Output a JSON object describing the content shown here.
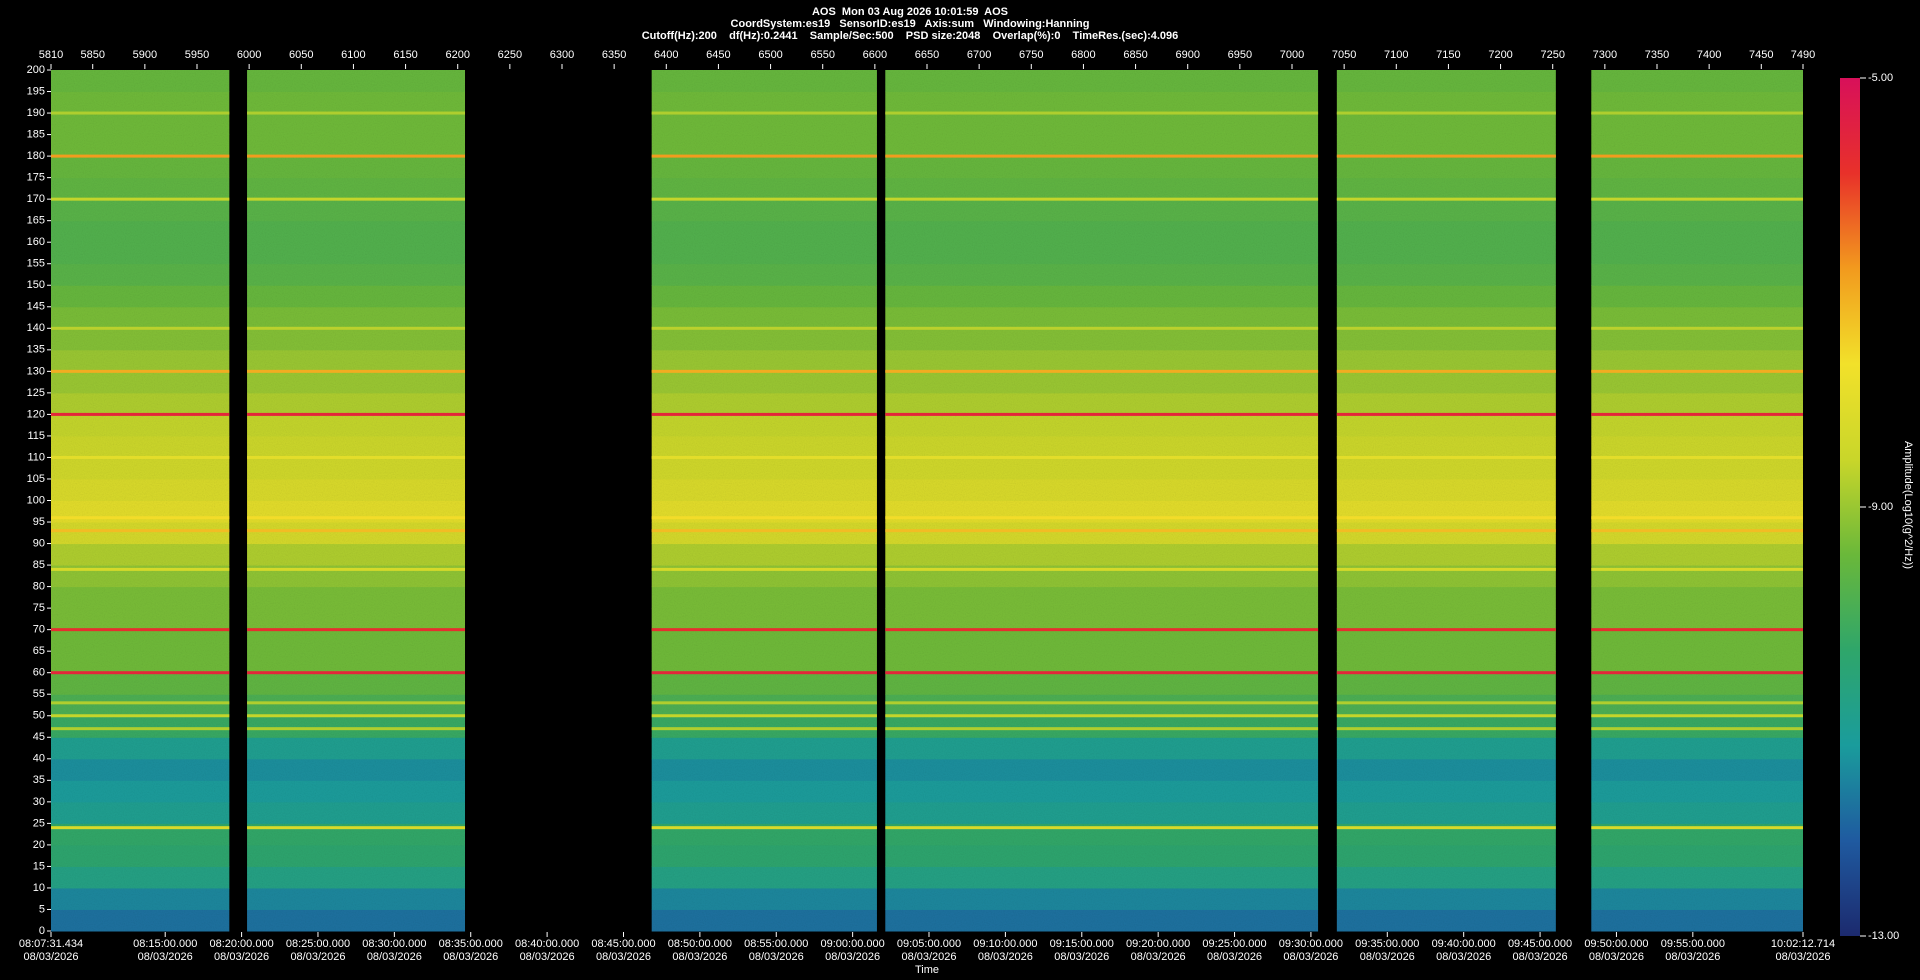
{
  "chart_data": {
    "type": "spectrogram",
    "title": "AOS  Mon 03 Aug 2026 10:01:59  AOS",
    "subtitle": "CoordSystem:es19   SensorID:es19   Axis:sum   Windowing:Hanning",
    "info": "Cutoff(Hz):200    df(Hz):0.2441    Sample/Sec:500    PSD size:2048    Overlap(%):0    TimeRes.(sec):4.096",
    "x_label": "Time",
    "colorbar_label": "Amplitude(Log10(g^2/Hz))",
    "xlim": [
      5810,
      7490
    ],
    "xticks": [
      5810,
      5850,
      5900,
      5950,
      6000,
      6050,
      6100,
      6150,
      6200,
      6250,
      6300,
      6350,
      6400,
      6450,
      6500,
      6550,
      6600,
      6650,
      6700,
      6750,
      6800,
      6850,
      6900,
      6950,
      7000,
      7050,
      7100,
      7150,
      7200,
      7250,
      7300,
      7350,
      7400,
      7450,
      7490
    ],
    "time_date": "08/03/2026",
    "time_ticks": [
      {
        "value": 5810,
        "label": "08:07:31.434"
      },
      {
        "value": 5919.51,
        "label": "08:15:00.000"
      },
      {
        "value": 5992.76,
        "label": "08:20:00.000"
      },
      {
        "value": 6066.0,
        "label": "08:25:00.000"
      },
      {
        "value": 6139.24,
        "label": "08:30:00.000"
      },
      {
        "value": 6212.48,
        "label": "08:35:00.000"
      },
      {
        "value": 6285.72,
        "label": "08:40:00.000"
      },
      {
        "value": 6358.96,
        "label": "08:45:00.000"
      },
      {
        "value": 6432.21,
        "label": "08:50:00.000"
      },
      {
        "value": 6505.45,
        "label": "08:55:00.000"
      },
      {
        "value": 6578.69,
        "label": "09:00:00.000"
      },
      {
        "value": 6651.93,
        "label": "09:05:00.000"
      },
      {
        "value": 6725.17,
        "label": "09:10:00.000"
      },
      {
        "value": 6798.42,
        "label": "09:15:00.000"
      },
      {
        "value": 6871.66,
        "label": "09:20:00.000"
      },
      {
        "value": 6944.9,
        "label": "09:25:00.000"
      },
      {
        "value": 7018.14,
        "label": "09:30:00.000"
      },
      {
        "value": 7091.38,
        "label": "09:35:00.000"
      },
      {
        "value": 7164.63,
        "label": "09:40:00.000"
      },
      {
        "value": 7237.87,
        "label": "09:45:00.000"
      },
      {
        "value": 7311.11,
        "label": "09:50:00.000"
      },
      {
        "value": 7384.35,
        "label": "09:55:00.000"
      },
      {
        "value": 7490,
        "label": "10:02:12.714"
      }
    ],
    "ylim": [
      0,
      200
    ],
    "yticks": [
      0,
      5,
      10,
      15,
      20,
      25,
      30,
      35,
      40,
      45,
      50,
      55,
      60,
      65,
      70,
      75,
      80,
      85,
      90,
      95,
      100,
      105,
      110,
      115,
      120,
      125,
      130,
      135,
      140,
      145,
      150,
      155,
      160,
      165,
      170,
      175,
      180,
      185,
      190,
      195,
      200
    ],
    "clim": [
      -13,
      -5
    ],
    "cticks": [
      {
        "value": -5,
        "label": "-5.00"
      },
      {
        "value": -9,
        "label": "-9.00"
      },
      {
        "value": -13,
        "label": "-13.00"
      }
    ],
    "colormap": [
      "#1c2a6e",
      "#1f5aa0",
      "#1a9c9c",
      "#2fa66a",
      "#6ab83a",
      "#c9d62a",
      "#f2e12a",
      "#f29a1e",
      "#e8312a",
      "#d8105a"
    ],
    "segments": [
      [
        5810,
        5981
      ],
      [
        5998,
        6207
      ],
      [
        6386,
        6602
      ],
      [
        6610,
        7025
      ],
      [
        7043,
        7253
      ],
      [
        7287,
        7490
      ]
    ],
    "profile": {
      "bins": [
        0,
        5,
        10,
        15,
        20,
        25,
        30,
        35,
        40,
        45,
        50,
        55,
        60,
        65,
        70,
        75,
        80,
        85,
        90,
        95,
        100,
        105,
        110,
        115,
        120,
        125,
        130,
        135,
        140,
        145,
        150,
        155,
        160,
        165,
        170,
        175,
        180,
        185,
        190,
        195,
        200
      ],
      "values": [
        -11.8,
        -11.5,
        -10.8,
        -10.4,
        -10.3,
        -11.0,
        -11.2,
        -11.4,
        -11.0,
        -10.2,
        -9.9,
        -9.6,
        -9.4,
        -9.4,
        -9.3,
        -9.3,
        -9.1,
        -8.8,
        -8.3,
        -8.0,
        -8.2,
        -8.4,
        -8.5,
        -8.6,
        -8.8,
        -9.0,
        -9.0,
        -9.2,
        -9.3,
        -9.5,
        -9.7,
        -9.8,
        -9.8,
        -9.7,
        -9.6,
        -9.5,
        -9.4,
        -9.4,
        -9.4,
        -9.5
      ]
    },
    "tones": [
      {
        "freq": 60,
        "amplitude": -5.6
      },
      {
        "freq": 70,
        "amplitude": -5.8
      },
      {
        "freq": 120,
        "amplitude": -5.6
      },
      {
        "freq": 180,
        "amplitude": -6.8
      },
      {
        "freq": 130,
        "amplitude": -7.0
      },
      {
        "freq": 93,
        "amplitude": -7.2
      },
      {
        "freq": 96,
        "amplitude": -7.6
      },
      {
        "freq": 24,
        "amplitude": -8.2
      },
      {
        "freq": 50,
        "amplitude": -8.6
      },
      {
        "freq": 53,
        "amplitude": -8.8
      },
      {
        "freq": 47,
        "amplitude": -8.8
      },
      {
        "freq": 170,
        "amplitude": -8.6
      },
      {
        "freq": 190,
        "amplitude": -8.8
      },
      {
        "freq": 140,
        "amplitude": -8.7
      },
      {
        "freq": 110,
        "amplitude": -8.0
      },
      {
        "freq": 84,
        "amplitude": -8.3
      }
    ]
  }
}
